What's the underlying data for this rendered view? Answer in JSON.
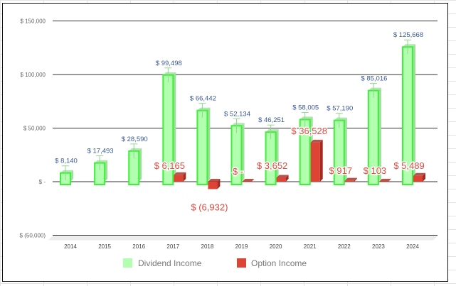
{
  "chart_data": {
    "type": "bar",
    "categories": [
      "2014",
      "2015",
      "2016",
      "2017",
      "2018",
      "2019",
      "2020",
      "2021",
      "2022",
      "2023",
      "2024"
    ],
    "series": [
      {
        "name": "Dividend Income",
        "color": "#b3ffb0",
        "edge": "#3ef03a",
        "values": [
          8140,
          17493,
          28590,
          99498,
          66442,
          52134,
          46251,
          58005,
          57190,
          85016,
          125668
        ],
        "labels": [
          "$ 8,140",
          "$ 17,493",
          "$ 28,590",
          "$ 99,498",
          "$ 66,442",
          "$ 52,134",
          "$ 46,251",
          "$ 58,005",
          "$ 57,190",
          "$ 85,016",
          "$ 125,668"
        ]
      },
      {
        "name": "Option Income",
        "color": "#dd4436",
        "edge": "#a52a20",
        "values": [
          null,
          null,
          null,
          6165,
          -6932,
          0,
          3652,
          36528,
          917,
          103,
          5489
        ],
        "labels": [
          "",
          "",
          "",
          "$ 6,165",
          "$ (6,932)",
          "$ -",
          "$ 3,652",
          "$ 36,528",
          "$ 917",
          "$ 103",
          "$ 5,489"
        ]
      }
    ],
    "yticks": [
      150000,
      100000,
      50000,
      0,
      -50000
    ],
    "ytick_labels": [
      "$ 150,000",
      "$ 100,000",
      "$ 50,000",
      "$ -",
      "$ (50,000)"
    ],
    "ylim": [
      -50000,
      150000
    ],
    "title": "",
    "xlabel": "",
    "ylabel": "",
    "grid": true,
    "legend": "bottom"
  }
}
